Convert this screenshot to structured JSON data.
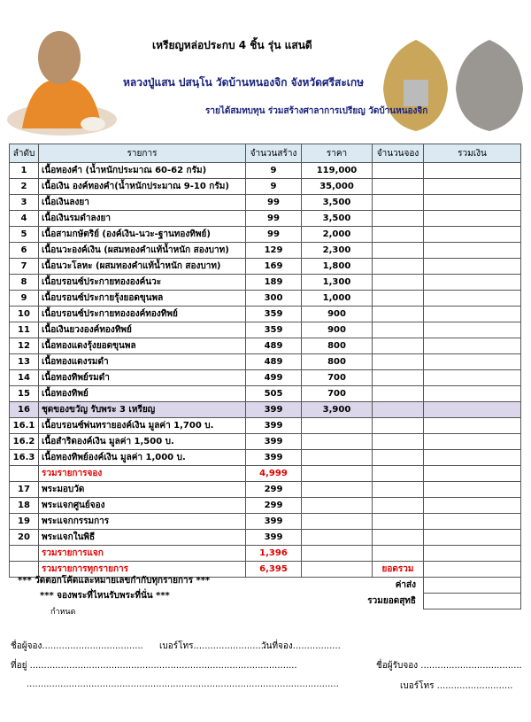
{
  "header": {
    "title": "เหรียญหล่อประกบ 4 ชิ้น รุ่น แสนดี",
    "subtitle": "หลวงปู่แสน ปสนฺโน วัดบ้านหนองจิก จังหวัดศรีสะเกษ",
    "note": "รายได้สมทบทุน ร่วมสร้างศาลาการเปรียญ วัดบ้านหนองจิก"
  },
  "table": {
    "header_color": "#dbe9f3",
    "columns": [
      "ลำดับ",
      "รายการ",
      "จำนวนสร้าง",
      "ราคา",
      "จำนวนจอง",
      "รวมเงิน"
    ],
    "rows": [
      {
        "no": "1",
        "item": "เนื้อทองคำ (น้ำหนักประมาณ 60-62 กรัม)",
        "qty": "9",
        "price": "119,000"
      },
      {
        "no": "2",
        "item": "เนื้อเงิน องค์ทองคำ(น้ำหนักประมาณ 9-10 กรัม)",
        "qty": "9",
        "price": "35,000"
      },
      {
        "no": "3",
        "item": "เนื้อเงินลงยา",
        "qty": "99",
        "price": "3,500"
      },
      {
        "no": "4",
        "item": "เนื้อเงินรมดำลงยา",
        "qty": "99",
        "price": "3,500"
      },
      {
        "no": "5",
        "item": "เนื้อสามกษัตริย์ (องค์เงิน-นวะ-ฐานทองทิพย์)",
        "qty": "99",
        "price": "2,000"
      },
      {
        "no": "6",
        "item": "เนื้อนวะองค์เงิน (ผสมทองคำแท้น้ำหนัก สองบาท)",
        "qty": "129",
        "price": "2,300"
      },
      {
        "no": "7",
        "item": "เนื้อนวะโลหะ (ผสมทองคำแท้น้ำหนัก สองบาท)",
        "qty": "169",
        "price": "1,800"
      },
      {
        "no": "8",
        "item": "เนื้อบรอนซ์ประกายทององค์นวะ",
        "qty": "189",
        "price": "1,300"
      },
      {
        "no": "9",
        "item": "เนื้อบรอนซ์ประกายรุ้งยอดขุนพล",
        "qty": "300",
        "price": "1,000"
      },
      {
        "no": "10",
        "item": "เนื้อบรอนซ์ประกายทององค์ทองทิพย์",
        "qty": "359",
        "price": "900"
      },
      {
        "no": "11",
        "item": "เนื้อเงินยวงองค์ทองทิพย์",
        "qty": "359",
        "price": "900"
      },
      {
        "no": "12",
        "item": "เนื้อทองแดงรุ้งยอดขุนพล",
        "qty": "489",
        "price": "800"
      },
      {
        "no": "13",
        "item": "เนื้อทองแดงรมดำ",
        "qty": "489",
        "price": "800"
      },
      {
        "no": "14",
        "item": "เนื้อทองทิพย์รมดำ",
        "qty": "499",
        "price": "700"
      },
      {
        "no": "15",
        "item": "เนื้อทองทิพย์",
        "qty": "505",
        "price": "700"
      },
      {
        "no": "16",
        "item": "ชุดของขวัญ รับพระ 3 เหรียญ",
        "qty": "399",
        "price": "3,900",
        "background": "#dcd6ea"
      },
      {
        "no": "16.1",
        "item": "เนื้อบรอนซ์พ่นทรายองค์เงิน มูลค่า 1,700 บ.",
        "qty": "399"
      },
      {
        "no": "16.2",
        "item": "เนื้อสำริดองค์เงิน มูลค่า 1,500 บ.",
        "qty": "399"
      },
      {
        "no": "16.3",
        "item": "เนื้อทองทิพย์องค์เงิน มูลค่า 1,000 บ.",
        "qty": "399"
      },
      {
        "item": "รวมรายการจอง",
        "qty": "4,999",
        "color": "#e00000"
      },
      {
        "no": "17",
        "item": "พระมอบวัด",
        "qty": "299"
      },
      {
        "no": "18",
        "item": "พระแจกศูนย์จอง",
        "qty": "299"
      },
      {
        "no": "19",
        "item": "พระแจกกรรมการ",
        "qty": "399"
      },
      {
        "no": "20",
        "item": "พระแจกในพิธี",
        "qty": "399"
      },
      {
        "item": "รวมรายการแจก",
        "qty": "1,396",
        "color": "#e00000"
      },
      {
        "item": "รวมรายการทุกรายการ",
        "qty": "6,395",
        "color": "#e00000",
        "sum_label": "ยอดรวม"
      }
    ],
    "summary": [
      "ค่าส่ง",
      "รวมยอดสุทธิ"
    ]
  },
  "notes": [
    "*** วัดตอกโค้ดและหมายเลขกำกับทุกรายการ ***",
    "*** จองพระที่ไหนรับพระที่นั่น ***",
    "กำหนด"
  ],
  "form": {
    "booker": "ชื่อผู้จอง....................................",
    "phone": "เบอร์โทร............................",
    "date": "วันที่จอง.................",
    "address": "ที่อยู่ ...............................................................................................",
    "address2": "...............................................................................................................",
    "receiver": "ชื่อผู้รับจอง ....................................",
    "receiver_phone": "เบอร์โทร ..........................."
  }
}
